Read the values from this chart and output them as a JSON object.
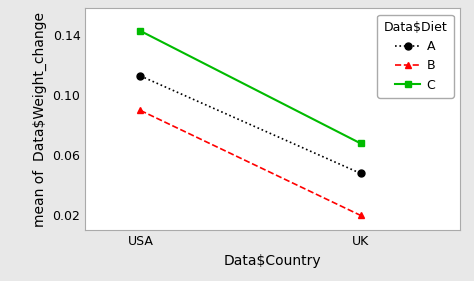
{
  "x_labels": [
    "USA",
    "UK"
  ],
  "x_positions": [
    0,
    1
  ],
  "series": {
    "A": {
      "values": [
        0.113,
        0.048
      ],
      "color": "#000000",
      "linestyle": "dotted",
      "marker": "o",
      "markersize": 5,
      "linewidth": 1.2
    },
    "B": {
      "values": [
        0.09,
        0.02
      ],
      "color": "#ff0000",
      "linestyle": "dashed",
      "marker": "^",
      "markersize": 5,
      "linewidth": 1.2
    },
    "C": {
      "values": [
        0.143,
        0.068
      ],
      "color": "#00bb00",
      "linestyle": "solid",
      "marker": "s",
      "markersize": 5,
      "linewidth": 1.5
    }
  },
  "ylabel": "mean of  Data$Weight_change",
  "xlabel": "Data$Country",
  "legend_title": "Data$Diet",
  "ylim": [
    0.01,
    0.158
  ],
  "yticks": [
    0.02,
    0.06,
    0.1,
    0.14
  ],
  "ytick_labels": [
    "0.02",
    "0.06",
    "0.10",
    "0.14"
  ],
  "background_color": "#e8e8e8",
  "plot_bg_color": "#ffffff",
  "axis_fontsize": 10,
  "tick_fontsize": 9,
  "legend_fontsize": 9,
  "xlim": [
    -0.25,
    1.45
  ]
}
